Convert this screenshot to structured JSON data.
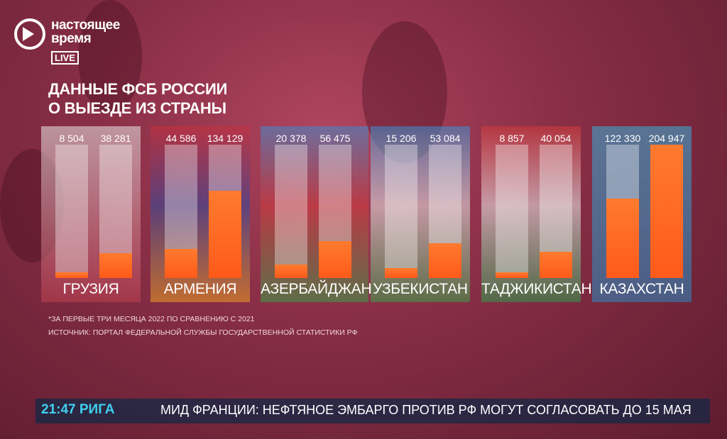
{
  "logo": {
    "line1": "настоящее",
    "line2": "время",
    "live": "LIVE"
  },
  "title_line1": "ДАННЫЕ ФСБ РОССИИ",
  "title_line2": "О ВЫЕЗДЕ ИЗ СТРАНЫ",
  "colors": {
    "bar": "#ff5a1a",
    "ticker_time": "#3fd0ee",
    "ticker_bg": "#14284a"
  },
  "chart_data": {
    "type": "bar",
    "categories": [
      "ГРУЗИЯ",
      "АРМЕНИЯ",
      "АЗЕРБАЙДЖАН",
      "УЗБЕКИСТАН",
      "ТАДЖИКИСТАН",
      "КАЗАХСТАН"
    ],
    "series": [
      {
        "values": [
          8504,
          44586,
          20378,
          15206,
          8857,
          122330
        ]
      },
      {
        "values": [
          38281,
          134129,
          56475,
          53084,
          40054,
          204947
        ]
      }
    ],
    "labels": [
      [
        "8 504",
        "38 281"
      ],
      [
        "44 586",
        "134 129"
      ],
      [
        "20 378",
        "56 475"
      ],
      [
        "15 206",
        "53 084"
      ],
      [
        "8 857",
        "40 054"
      ],
      [
        "122 330",
        "204 947"
      ]
    ],
    "ylim": [
      0,
      204947
    ]
  },
  "footnote": "*ЗА ПЕРВЫЕ ТРИ МЕСЯЦА 2022 ПО СРАВНЕНИЮ С 2021",
  "source": "ИСТОЧНИК: ПОРТАЛ ФЕДЕРАЛЬНОЙ СЛУЖБЫ ГОСУДАРСТВЕННОЙ СТАТИСТИКИ РФ",
  "ticker": {
    "time": "21:47 РИГА",
    "headline": "МИД ФРАНЦИИ: НЕФТЯНОЕ ЭМБАРГО ПРОТИВ РФ МОГУТ СОГЛАСОВАТЬ ДО 15 МАЯ"
  }
}
